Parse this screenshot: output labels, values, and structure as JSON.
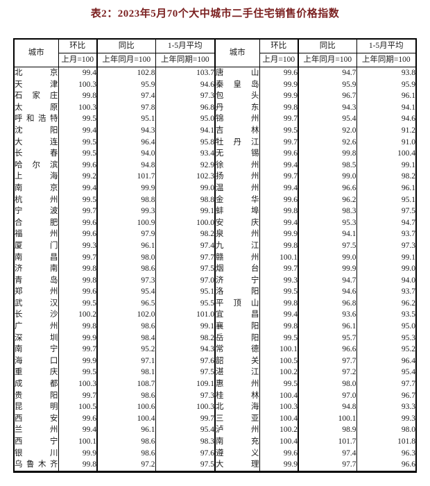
{
  "title": "表2：2023年5月70个大中城市二手住宅销售价格指数",
  "colors": {
    "title_text": "#7a1f1f",
    "body_text": "#1a1a1a",
    "border": "#000000",
    "background": "#ffffff"
  },
  "table": {
    "headers": {
      "city": "城市",
      "mom": "环比",
      "mom_base": "上月=100",
      "yoy": "同比",
      "yoy_base": "上年同月=100",
      "avg": "1-5月平均",
      "avg_base": "上年同期=100"
    },
    "left_rows": [
      {
        "city": "北京",
        "mom": "99.4",
        "yoy": "102.8",
        "avg": "103.7"
      },
      {
        "city": "天津",
        "mom": "100.3",
        "yoy": "95.9",
        "avg": "94.6"
      },
      {
        "city": "石家庄",
        "mom": "99.8",
        "yoy": "97.4",
        "avg": "97.3"
      },
      {
        "city": "太原",
        "mom": "100.3",
        "yoy": "97.8",
        "avg": "96.8"
      },
      {
        "city": "呼和浩特",
        "mom": "99.5",
        "yoy": "95.1",
        "avg": "95.0"
      },
      {
        "city": "沈阳",
        "mom": "99.4",
        "yoy": "94.3",
        "avg": "94.1"
      },
      {
        "city": "大连",
        "mom": "99.5",
        "yoy": "96.4",
        "avg": "95.8"
      },
      {
        "city": "长春",
        "mom": "99.5",
        "yoy": "94.0",
        "avg": "93.4"
      },
      {
        "city": "哈尔滨",
        "mom": "99.6",
        "yoy": "94.8",
        "avg": "92.9"
      },
      {
        "city": "上海",
        "mom": "99.2",
        "yoy": "101.7",
        "avg": "102.3"
      },
      {
        "city": "南京",
        "mom": "99.4",
        "yoy": "99.9",
        "avg": "99.0"
      },
      {
        "city": "杭州",
        "mom": "99.5",
        "yoy": "98.8",
        "avg": "98.8"
      },
      {
        "city": "宁波",
        "mom": "99.7",
        "yoy": "99.3",
        "avg": "99.1"
      },
      {
        "city": "合肥",
        "mom": "99.6",
        "yoy": "100.9",
        "avg": "100.0"
      },
      {
        "city": "福州",
        "mom": "99.6",
        "yoy": "97.9",
        "avg": "98.2"
      },
      {
        "city": "厦门",
        "mom": "99.3",
        "yoy": "96.1",
        "avg": "97.4"
      },
      {
        "city": "南昌",
        "mom": "99.7",
        "yoy": "98.0",
        "avg": "97.7"
      },
      {
        "city": "济南",
        "mom": "99.8",
        "yoy": "98.6",
        "avg": "97.5"
      },
      {
        "city": "青岛",
        "mom": "99.8",
        "yoy": "97.3",
        "avg": "97.0"
      },
      {
        "city": "郑州",
        "mom": "99.6",
        "yoy": "95.4",
        "avg": "95.1"
      },
      {
        "city": "武汉",
        "mom": "99.5",
        "yoy": "96.5",
        "avg": "95.5"
      },
      {
        "city": "长沙",
        "mom": "100.2",
        "yoy": "102.0",
        "avg": "101.0"
      },
      {
        "city": "广州",
        "mom": "99.8",
        "yoy": "98.6",
        "avg": "99.1"
      },
      {
        "city": "深圳",
        "mom": "99.9",
        "yoy": "98.4",
        "avg": "98.2"
      },
      {
        "city": "南宁",
        "mom": "99.7",
        "yoy": "95.2",
        "avg": "94.3"
      },
      {
        "city": "海口",
        "mom": "99.9",
        "yoy": "97.1",
        "avg": "97.6"
      },
      {
        "city": "重庆",
        "mom": "99.5",
        "yoy": "98.1",
        "avg": "97.5"
      },
      {
        "city": "成都",
        "mom": "100.3",
        "yoy": "108.7",
        "avg": "109.1"
      },
      {
        "city": "贵阳",
        "mom": "99.7",
        "yoy": "98.6",
        "avg": "97.3"
      },
      {
        "city": "昆明",
        "mom": "100.5",
        "yoy": "100.6",
        "avg": "100.3"
      },
      {
        "city": "西安",
        "mom": "99.6",
        "yoy": "100.4",
        "avg": "99.7"
      },
      {
        "city": "兰州",
        "mom": "99.4",
        "yoy": "96.1",
        "avg": "95.4"
      },
      {
        "city": "西宁",
        "mom": "100.1",
        "yoy": "98.6",
        "avg": "98.3"
      },
      {
        "city": "银川",
        "mom": "99.9",
        "yoy": "98.6",
        "avg": "97.6"
      },
      {
        "city": "乌鲁木齐",
        "mom": "99.8",
        "yoy": "97.2",
        "avg": "97.5"
      }
    ],
    "right_rows": [
      {
        "city": "唐山",
        "mom": "99.6",
        "yoy": "94.7",
        "avg": "93.8"
      },
      {
        "city": "秦皇岛",
        "mom": "99.9",
        "yoy": "95.9",
        "avg": "95.9"
      },
      {
        "city": "包头",
        "mom": "99.9",
        "yoy": "96.7",
        "avg": "96.1"
      },
      {
        "city": "丹东",
        "mom": "99.8",
        "yoy": "94.3",
        "avg": "94.1"
      },
      {
        "city": "锦州",
        "mom": "99.7",
        "yoy": "95.4",
        "avg": "94.6"
      },
      {
        "city": "吉林",
        "mom": "99.5",
        "yoy": "92.0",
        "avg": "91.2"
      },
      {
        "city": "牡丹江",
        "mom": "99.7",
        "yoy": "92.6",
        "avg": "91.0"
      },
      {
        "city": "无锡",
        "mom": "99.6",
        "yoy": "99.8",
        "avg": "100.4"
      },
      {
        "city": "徐州",
        "mom": "99.4",
        "yoy": "98.5",
        "avg": "99.1"
      },
      {
        "city": "扬州",
        "mom": "99.7",
        "yoy": "99.0",
        "avg": "98.2"
      },
      {
        "city": "温州",
        "mom": "99.4",
        "yoy": "96.6",
        "avg": "96.1"
      },
      {
        "city": "金华",
        "mom": "99.6",
        "yoy": "96.2",
        "avg": "95.1"
      },
      {
        "city": "蚌埠",
        "mom": "99.8",
        "yoy": "98.3",
        "avg": "97.5"
      },
      {
        "city": "安庆",
        "mom": "99.4",
        "yoy": "95.3",
        "avg": "94.7"
      },
      {
        "city": "泉州",
        "mom": "99.9",
        "yoy": "94.1",
        "avg": "93.7"
      },
      {
        "city": "九江",
        "mom": "99.8",
        "yoy": "97.5",
        "avg": "97.3"
      },
      {
        "city": "赣州",
        "mom": "100.1",
        "yoy": "99.0",
        "avg": "99.1"
      },
      {
        "city": "烟台",
        "mom": "99.7",
        "yoy": "99.9",
        "avg": "99.0"
      },
      {
        "city": "济宁",
        "mom": "99.3",
        "yoy": "94.7",
        "avg": "94.0"
      },
      {
        "city": "洛阳",
        "mom": "99.5",
        "yoy": "94.6",
        "avg": "93.7"
      },
      {
        "city": "平顶山",
        "mom": "99.8",
        "yoy": "96.8",
        "avg": "96.2"
      },
      {
        "city": "宜昌",
        "mom": "99.4",
        "yoy": "93.6",
        "avg": "93.5"
      },
      {
        "city": "襄阳",
        "mom": "99.8",
        "yoy": "96.1",
        "avg": "95.0"
      },
      {
        "city": "岳阳",
        "mom": "99.5",
        "yoy": "95.7",
        "avg": "95.3"
      },
      {
        "city": "常德",
        "mom": "100.1",
        "yoy": "96.6",
        "avg": "95.2"
      },
      {
        "city": "韶关",
        "mom": "100.5",
        "yoy": "97.7",
        "avg": "96.4"
      },
      {
        "city": "湛江",
        "mom": "100.2",
        "yoy": "97.2",
        "avg": "95.4"
      },
      {
        "city": "惠州",
        "mom": "99.5",
        "yoy": "98.0",
        "avg": "97.7"
      },
      {
        "city": "桂林",
        "mom": "100.4",
        "yoy": "97.0",
        "avg": "96.7"
      },
      {
        "city": "北海",
        "mom": "100.3",
        "yoy": "94.8",
        "avg": "93.3"
      },
      {
        "city": "三亚",
        "mom": "100.4",
        "yoy": "100.1",
        "avg": "99.3"
      },
      {
        "city": "泸州",
        "mom": "100.2",
        "yoy": "98.9",
        "avg": "98.0"
      },
      {
        "city": "南充",
        "mom": "100.4",
        "yoy": "101.7",
        "avg": "101.8"
      },
      {
        "city": "遵义",
        "mom": "99.6",
        "yoy": "97.4",
        "avg": "96.3"
      },
      {
        "city": "大理",
        "mom": "99.9",
        "yoy": "97.7",
        "avg": "96.6"
      }
    ]
  }
}
